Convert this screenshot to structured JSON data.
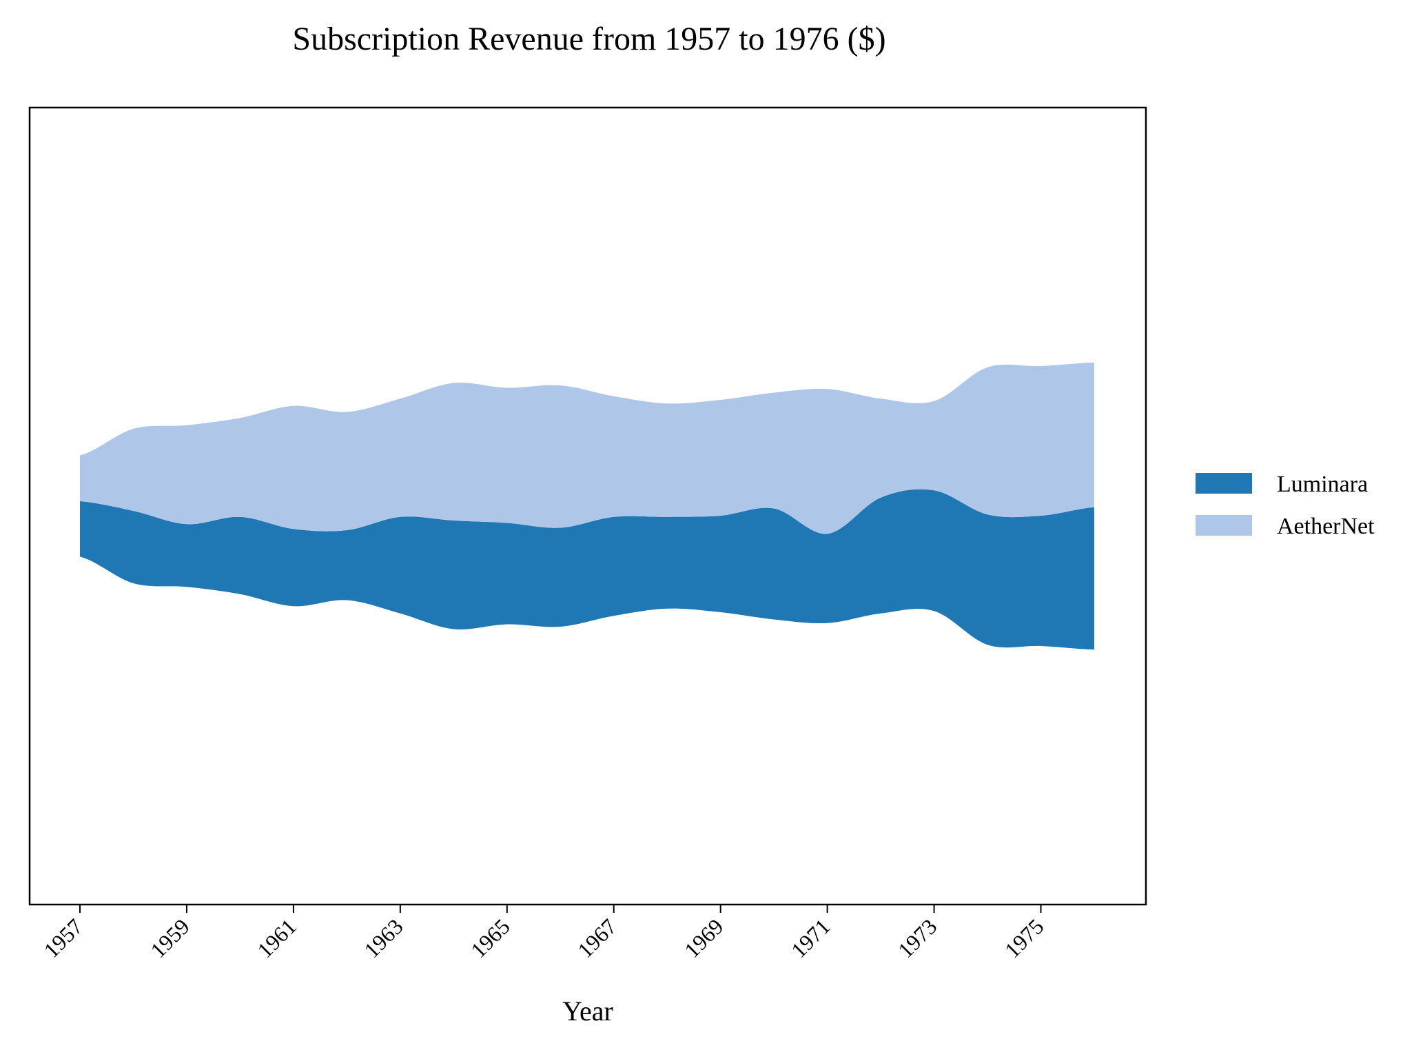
{
  "chart_data": {
    "type": "area",
    "variant": "streamgraph",
    "title": "Subscription Revenue from 1957 to 1976 ($)",
    "xlabel": "Year",
    "ylabel": "",
    "x": [
      1957,
      1958,
      1959,
      1960,
      1961,
      1962,
      1963,
      1964,
      1965,
      1966,
      1967,
      1968,
      1969,
      1970,
      1971,
      1972,
      1973,
      1974,
      1975,
      1976
    ],
    "xticks": [
      "1957",
      "1959",
      "1961",
      "1963",
      "1965",
      "1967",
      "1969",
      "1971",
      "1973",
      "1975"
    ],
    "y_ticks_shown": false,
    "grid": false,
    "legend_position": "right",
    "series": [
      {
        "name": "Luminara",
        "color": "#1f77b4",
        "values": [
          23,
          30,
          26,
          32,
          32,
          29,
          40,
          45,
          42,
          41,
          41,
          38,
          40,
          46,
          37,
          48,
          50,
          54,
          54,
          59
        ]
      },
      {
        "name": "AetherNet",
        "color": "#aec7e8",
        "values": [
          19,
          34,
          41,
          41,
          51,
          49,
          49,
          57,
          56,
          59,
          50,
          47,
          48,
          48,
          60,
          41,
          37,
          61,
          62,
          60
        ]
      }
    ]
  }
}
